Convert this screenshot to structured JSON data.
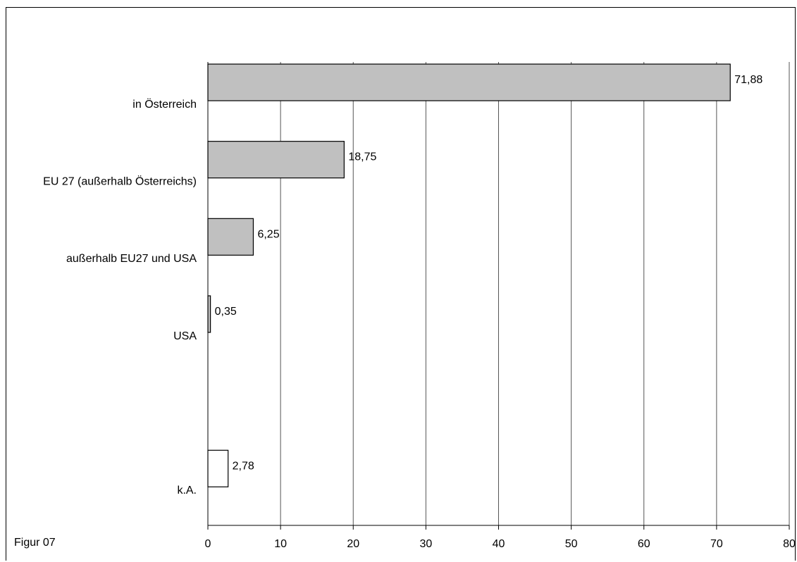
{
  "figure": {
    "caption": "Figur 07"
  },
  "colors": {
    "bar_gray": "#c0c0c0",
    "bar_white": "#ffffff",
    "bar_stroke": "#000000",
    "grid": "#555555"
  },
  "chart_data": {
    "type": "bar",
    "orientation": "horizontal",
    "title": "",
    "xlabel": "",
    "ylabel": "",
    "xlim": [
      0,
      80
    ],
    "x_ticks": [
      0,
      10,
      20,
      30,
      40,
      50,
      60,
      70,
      80
    ],
    "x_tick_labels": [
      "0",
      "10",
      "20",
      "30",
      "40",
      "50",
      "60",
      "70",
      "80"
    ],
    "grid": "vertical",
    "legend": "none",
    "categories": [
      "in Österreich",
      "EU 27 (außerhalb Österreichs)",
      "außerhalb EU27 und USA",
      "USA",
      "",
      "k.A."
    ],
    "values": [
      71.88,
      18.75,
      6.25,
      0.35,
      null,
      2.78
    ],
    "value_labels": [
      "71,88",
      "18,75",
      "6,25",
      "0,35",
      "",
      "2,78"
    ],
    "bar_fill": [
      "gray",
      "gray",
      "gray",
      "gray",
      "none",
      "white"
    ]
  }
}
